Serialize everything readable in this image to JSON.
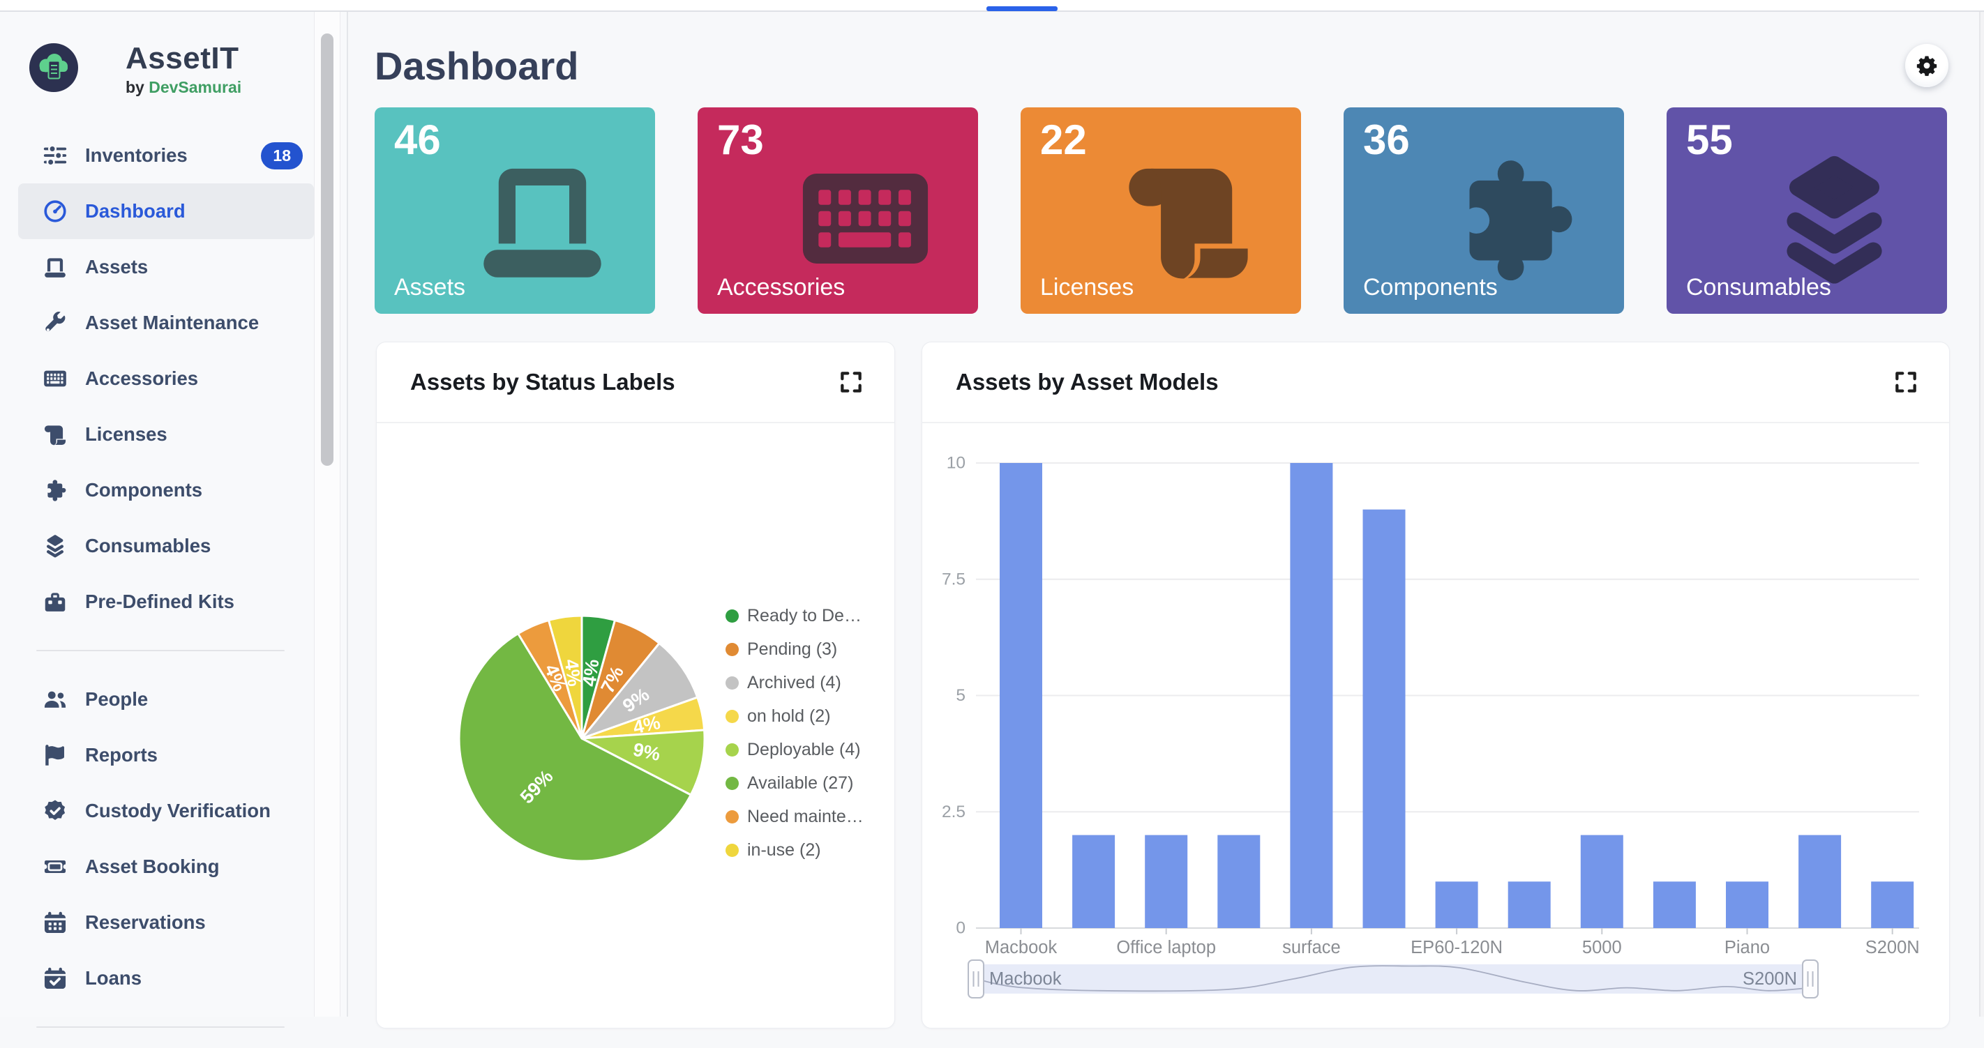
{
  "app": {
    "name": "AssetIT",
    "byline_prefix": "by",
    "byline_brand": "DevSamurai"
  },
  "topbar": {
    "progress_color": "#2a62e9"
  },
  "sidebar": {
    "items": [
      {
        "icon": "sliders",
        "label": "Inventories",
        "badge": "18"
      },
      {
        "icon": "gauge",
        "label": "Dashboard",
        "active": true
      },
      {
        "icon": "laptop",
        "label": "Assets"
      },
      {
        "icon": "wrench",
        "label": "Asset Maintenance"
      },
      {
        "icon": "keyboard",
        "label": "Accessories"
      },
      {
        "icon": "scroll",
        "label": "Licenses"
      },
      {
        "icon": "puzzle",
        "label": "Components"
      },
      {
        "icon": "layers",
        "label": "Consumables"
      },
      {
        "icon": "toolbox",
        "label": "Pre-Defined Kits"
      },
      {
        "divider": true
      },
      {
        "icon": "users",
        "label": "People"
      },
      {
        "icon": "flag",
        "label": "Reports"
      },
      {
        "icon": "badge-check",
        "label": "Custody Verification"
      },
      {
        "icon": "ticket",
        "label": "Asset Booking"
      },
      {
        "icon": "calendar",
        "label": "Reservations"
      },
      {
        "icon": "calendar-check",
        "label": "Loans"
      },
      {
        "divider": true
      }
    ]
  },
  "header": {
    "title": "Dashboard"
  },
  "cards": [
    {
      "value": "46",
      "label": "Assets",
      "color": "#58c2bf",
      "icon": "laptop",
      "icon_color": "#3c5f60"
    },
    {
      "value": "73",
      "label": "Accessories",
      "color": "#c52a5c",
      "icon": "keyboard",
      "icon_color": "#532c3f"
    },
    {
      "value": "22",
      "label": "Licenses",
      "color": "#ec8a35",
      "icon": "scroll",
      "icon_color": "#6e4423"
    },
    {
      "value": "36",
      "label": "Components",
      "color": "#4d87b4",
      "icon": "puzzle",
      "icon_color": "#2e4a5e"
    },
    {
      "value": "55",
      "label": "Consumables",
      "color": "#6153a8",
      "icon": "layers",
      "icon_color": "#332e57"
    }
  ],
  "panels": [
    {
      "title": "Assets by Status Labels"
    },
    {
      "title": "Assets by Asset Models"
    }
  ],
  "chart_data": [
    {
      "type": "pie",
      "title": "Assets by Status Labels",
      "legend_position": "right",
      "start_angle_deg": 0,
      "total": 46,
      "slices": [
        {
          "label": "Ready to De…",
          "count": 2,
          "pct_label": "4%",
          "color": "#2f9e41"
        },
        {
          "label": "Pending (3)",
          "count": 3,
          "pct_label": "7%",
          "color": "#e08a33"
        },
        {
          "label": "Archived (4)",
          "count": 4,
          "pct_label": "9%",
          "color": "#c3c3c3"
        },
        {
          "label": "on hold (2)",
          "count": 2,
          "pct_label": "4%",
          "color": "#f5d84a"
        },
        {
          "label": "Deployable (4)",
          "count": 4,
          "pct_label": "9%",
          "color": "#a6d34c"
        },
        {
          "label": "Available (27)",
          "count": 27,
          "pct_label": "59%",
          "color": "#73b843"
        },
        {
          "label": "Need mainte…",
          "count": 2,
          "pct_label": "4%",
          "color": "#ec9b3d"
        },
        {
          "label": "in-use (2)",
          "count": 2,
          "pct_label": "4%",
          "color": "#efd63d"
        }
      ]
    },
    {
      "type": "bar",
      "title": "Assets by Asset Models",
      "values": [
        10,
        2,
        2,
        2,
        10,
        9,
        1,
        1,
        2,
        1,
        1,
        2,
        1
      ],
      "x_tick_indices": [
        0,
        2,
        4,
        6,
        8,
        10,
        12
      ],
      "x_tick_labels": [
        "Macbook",
        "Office laptop",
        "surface",
        "EP60-120N",
        "5000",
        "Piano",
        "S200N"
      ],
      "y_ticks": [
        "0",
        "2.5",
        "5",
        "7.5",
        "10"
      ],
      "ylim": [
        0,
        10
      ],
      "grid": true,
      "bar_color": "#7496ea",
      "navigator": {
        "start_label": "Macbook",
        "end_label": "S200N",
        "profile": [
          [
            0,
            0.5
          ],
          [
            0.05,
            0.78
          ],
          [
            0.15,
            0.9
          ],
          [
            0.3,
            0.86
          ],
          [
            0.38,
            0.5
          ],
          [
            0.45,
            0.1
          ],
          [
            0.52,
            0.06
          ],
          [
            0.58,
            0.12
          ],
          [
            0.66,
            0.62
          ],
          [
            0.72,
            0.9
          ],
          [
            0.78,
            0.8
          ],
          [
            0.84,
            0.9
          ],
          [
            0.9,
            0.76
          ],
          [
            0.95,
            0.9
          ],
          [
            1,
            0.8
          ]
        ]
      }
    }
  ]
}
